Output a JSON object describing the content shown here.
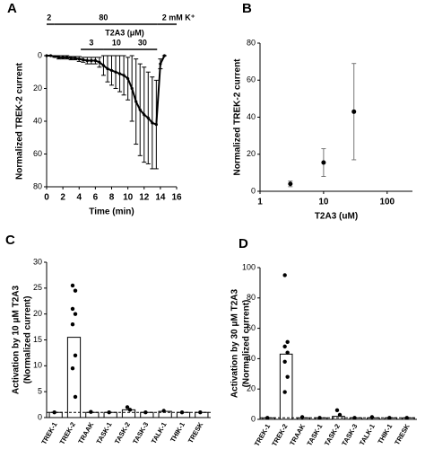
{
  "chart_data": [
    {
      "type": "line",
      "panel": "A",
      "ylabel": "Normalized TREK-2 current",
      "xlabel": "Time (min)",
      "x": [
        0,
        0.5,
        1,
        1.5,
        2,
        2.5,
        3,
        3.5,
        4,
        4.5,
        5,
        5.5,
        6,
        6.5,
        7,
        7.5,
        8,
        8.5,
        9,
        9.5,
        10,
        10.5,
        11,
        11.5,
        12,
        12.5,
        13,
        13.5,
        14,
        14.5
      ],
      "values": [
        0,
        0,
        0.5,
        1,
        1,
        1,
        1.5,
        1.5,
        2,
        2.5,
        3,
        3,
        3,
        4,
        6,
        8,
        9,
        10,
        11,
        12,
        14,
        20,
        28,
        33,
        36,
        38,
        41,
        42,
        5,
        0
      ],
      "errors": [
        0,
        0,
        0.5,
        1,
        1,
        1,
        1,
        1,
        1.5,
        1.5,
        2,
        2,
        2,
        3,
        6,
        8,
        9,
        10,
        11,
        12,
        13,
        20,
        26,
        28,
        29,
        28,
        28,
        27,
        3,
        0
      ],
      "xlim": [
        0,
        16
      ],
      "xticks": [
        0,
        2,
        4,
        6,
        8,
        10,
        12,
        14,
        16
      ],
      "ylim": [
        0,
        80
      ],
      "yticks": [
        0,
        20,
        40,
        60,
        80
      ],
      "inverted": true,
      "annotations": [
        "2",
        "80",
        "2 mM K⁺",
        "T2A3 (μM)",
        "3",
        "10",
        "30"
      ]
    },
    {
      "type": "scatter",
      "panel": "B",
      "ylabel": "Normalized TREK-2 current",
      "xlabel": "T2A3 (uM)",
      "x": [
        3,
        10,
        30
      ],
      "values": [
        4,
        15.5,
        43
      ],
      "errors": [
        1.5,
        7.5,
        26
      ],
      "xlim": [
        1,
        250
      ],
      "xticks": [
        1,
        10,
        100
      ],
      "log_x": true,
      "ylim": [
        0,
        80
      ],
      "yticks": [
        0,
        20,
        40,
        60,
        80
      ]
    },
    {
      "type": "bar",
      "panel": "C",
      "ylabel": [
        "Activation by 10 μM T2A3",
        "(Normalized current)"
      ],
      "categories": [
        "TREK-1",
        "TREK-2",
        "TRAAK",
        "TASK-1",
        "TASK-2",
        "TASK-3",
        "TALK-1",
        "THIK-1",
        "TRESK"
      ],
      "values": [
        1,
        15.5,
        1,
        1,
        1.5,
        1,
        1.2,
        1,
        1
      ],
      "points": [
        [
          1
        ],
        [
          25.5,
          24.5,
          21,
          20,
          18,
          12,
          9.5,
          4
        ],
        [
          1.1
        ],
        [
          1
        ],
        [
          2,
          1.5
        ],
        [
          1
        ],
        [
          1.3
        ],
        [
          1
        ],
        [
          1
        ]
      ],
      "reference": 1,
      "ylim": [
        0,
        30
      ],
      "yticks": [
        0,
        5,
        10,
        15,
        20,
        25,
        30
      ]
    },
    {
      "type": "bar",
      "panel": "D",
      "ylabel": [
        "Activation by 30 μM T2A3",
        "(Normalized current)"
      ],
      "categories": [
        "TREK-1",
        "TREK-2",
        "TRAAK",
        "TASK-1",
        "TASK-2",
        "TASK-3",
        "TALK-1",
        "THIK-1",
        "TRESK"
      ],
      "values": [
        1,
        43,
        1,
        1,
        2,
        1,
        1,
        1,
        1
      ],
      "points": [
        [
          1
        ],
        [
          95,
          51,
          48,
          44,
          38,
          28,
          18
        ],
        [
          1.5
        ],
        [
          1
        ],
        [
          6,
          3
        ],
        [
          1
        ],
        [
          1.5
        ],
        [
          1
        ],
        [
          1
        ]
      ],
      "reference": 1,
      "ylim": [
        0,
        100
      ],
      "yticks": [
        0,
        20,
        40,
        60,
        80,
        100
      ]
    }
  ]
}
